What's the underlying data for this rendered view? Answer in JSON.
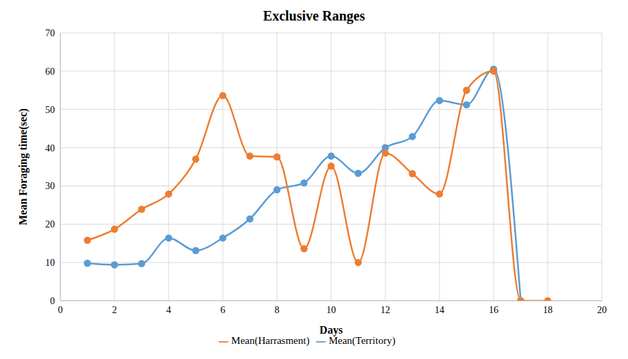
{
  "chart_data": {
    "type": "line",
    "title": "Exclusive Ranges",
    "x_label": "Days",
    "y_label": "Mean Foraging time(sec)",
    "x": [
      1,
      2,
      3,
      4,
      5,
      6,
      7,
      8,
      9,
      10,
      11,
      12,
      13,
      14,
      15,
      16,
      17,
      18
    ],
    "series": [
      {
        "name": "Mean(Territory)",
        "color": "#5b9bd5",
        "marker": "circle",
        "line_style": "smooth",
        "values": [
          9.8,
          9.4,
          9.7,
          16.4,
          13.1,
          16.4,
          21.4,
          29.0,
          30.8,
          37.8,
          33.3,
          40.0,
          42.9,
          52.3,
          51.2,
          60.5,
          0,
          null
        ]
      },
      {
        "name": "Mean(Harrasment)",
        "color": "#ed7d31",
        "marker": "circle",
        "line_style": "smooth",
        "values": [
          15.8,
          18.7,
          23.9,
          27.9,
          37.0,
          53.6,
          37.8,
          37.6,
          13.6,
          35.2,
          10.0,
          38.6,
          33.2,
          27.9,
          55.0,
          60.0,
          0,
          0
        ]
      }
    ],
    "xlim": [
      0,
      20
    ],
    "xticks": [
      0,
      2,
      4,
      6,
      8,
      10,
      12,
      14,
      16,
      18,
      20
    ],
    "ylim": [
      0,
      70
    ],
    "yticks": [
      0,
      10,
      20,
      30,
      40,
      50,
      60,
      70
    ],
    "grid": true,
    "legend": "bottom"
  }
}
